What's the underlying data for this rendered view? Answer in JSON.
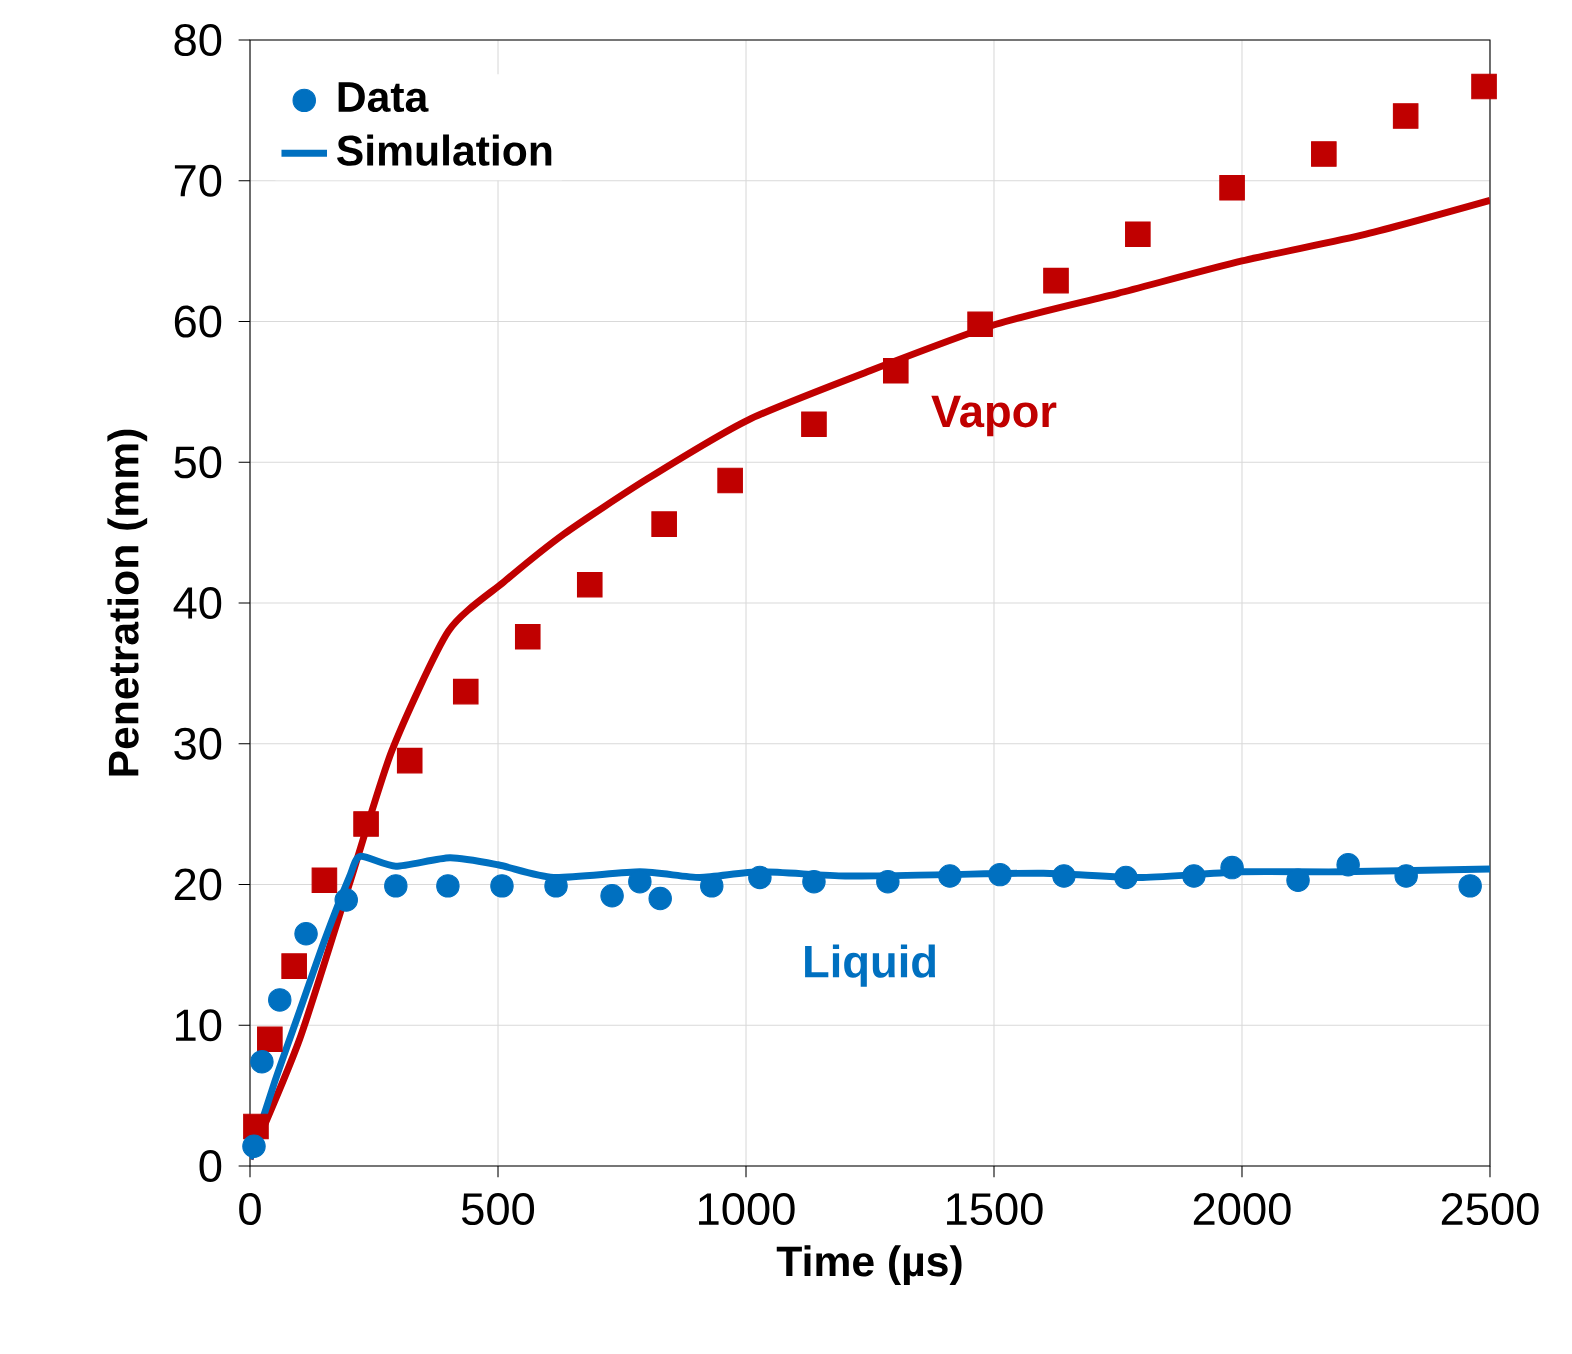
{
  "chart_data": {
    "type": "scatter",
    "xlabel": "Time (µs)",
    "ylabel": "Penetration (mm)",
    "xlim": [
      0,
      2500
    ],
    "ylim": [
      0,
      80
    ],
    "xticks": [
      0,
      500,
      1000,
      1500,
      2000,
      2500
    ],
    "yticks": [
      0,
      10,
      20,
      30,
      40,
      50,
      60,
      70,
      80
    ],
    "grid": true,
    "legend": "top left",
    "series": [
      {
        "marker": "square",
        "color": "#c00000",
        "x": [
          12,
          40,
          89,
          150,
          234,
          322,
          435,
          560,
          685,
          835,
          968,
          1137,
          1302,
          1472,
          1625,
          1790,
          1980,
          2165,
          2330,
          2488
        ],
        "values": [
          2.8,
          9,
          14.2,
          20.3,
          24.3,
          28.8,
          33.7,
          37.6,
          41.3,
          45.6,
          48.7,
          52.7,
          56.5,
          59.8,
          62.9,
          66.2,
          69.5,
          71.9,
          74.6,
          76.7
        ]
      },
      {
        "type": "line",
        "marker": "none",
        "color": "#c00000",
        "x": [
          0,
          100,
          200,
          286,
          400,
          512,
          633,
          800,
          1004,
          1250,
          1504,
          1750,
          2000,
          2250,
          2500
        ],
        "values": [
          0.5,
          9,
          20,
          29.5,
          38,
          41.5,
          44.9,
          48.8,
          53,
          56.5,
          59.8,
          62,
          64.3,
          66.2,
          68.6
        ]
      },
      {
        "marker": "circle",
        "name": "Data",
        "color": "#0070c0",
        "x": [
          8,
          24,
          60,
          113,
          194,
          294,
          399,
          508,
          617,
          730,
          786,
          827,
          931,
          1028,
          1137,
          1286,
          1411,
          1512,
          1641,
          1766,
          1903,
          1980,
          2113,
          2214,
          2331,
          2460
        ],
        "values": [
          1.4,
          7.4,
          11.8,
          16.5,
          18.9,
          19.9,
          19.9,
          19.9,
          19.9,
          19.2,
          20.2,
          19,
          19.9,
          20.5,
          20.2,
          20.2,
          20.6,
          20.7,
          20.6,
          20.5,
          20.6,
          21.2,
          20.3,
          21.4,
          20.6,
          19.9
        ]
      },
      {
        "type": "line",
        "marker": "none",
        "name": "Simulation",
        "color": "#0070c0",
        "x": [
          0,
          50,
          100,
          150,
          200,
          222,
          294,
          403,
          500,
          612,
          786,
          907,
          1028,
          1200,
          1400,
          1600,
          1800,
          2000,
          2200,
          2500
        ],
        "values": [
          0.5,
          6,
          11,
          16,
          20.5,
          22,
          21.3,
          21.9,
          21.4,
          20.5,
          20.9,
          20.5,
          20.9,
          20.6,
          20.7,
          20.8,
          20.5,
          20.9,
          20.9,
          21.1
        ]
      }
    ],
    "annotations": [
      "Vapor",
      "Liquid"
    ]
  }
}
